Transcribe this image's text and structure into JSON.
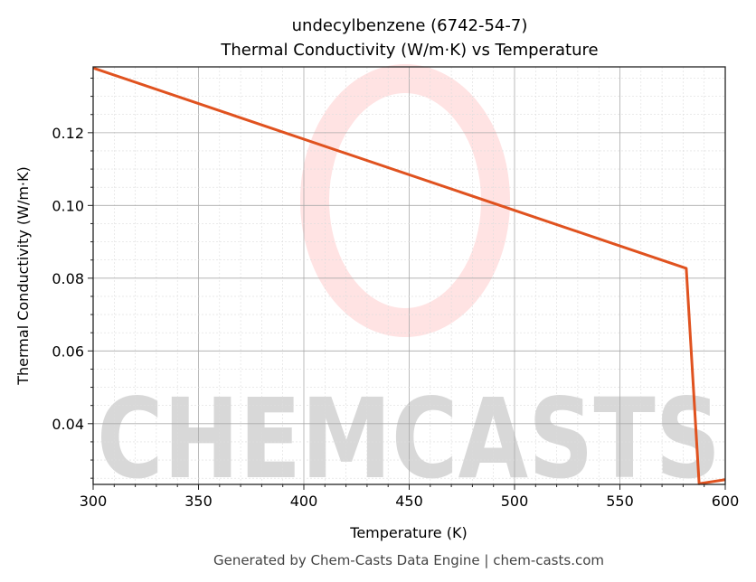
{
  "chart_data": {
    "type": "line",
    "title": "undecylbenzene (6742-54-7)",
    "subtitle": "Thermal Conductivity (W/m·K) vs Temperature",
    "xlabel": "Temperature (K)",
    "ylabel": "Thermal Conductivity (W/m·K)",
    "xlim": [
      300,
      600
    ],
    "ylim": [
      0.0233,
      0.1381
    ],
    "xticks": [
      300,
      350,
      400,
      450,
      500,
      550,
      600
    ],
    "yticks": [
      0.04,
      0.06,
      0.08,
      0.1,
      0.12
    ],
    "grid": true,
    "series": [
      {
        "color": "#e0521f",
        "x": [
          300,
          581.5,
          587.6,
          600
        ],
        "y": [
          0.1378,
          0.0827,
          0.0235,
          0.0246
        ]
      }
    ]
  },
  "watermark": "CHEMCASTS",
  "footer": "Generated by Chem-Casts Data Engine | chem-casts.com"
}
